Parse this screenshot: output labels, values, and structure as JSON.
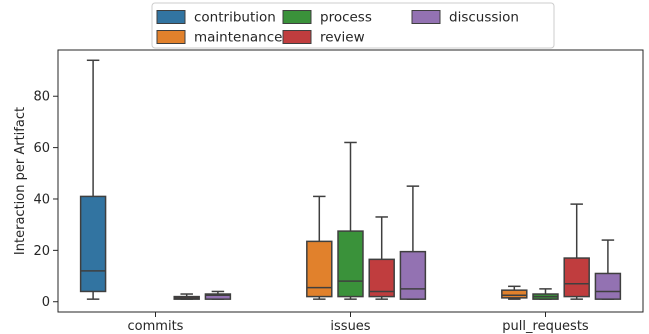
{
  "chart_data": {
    "type": "boxplot",
    "title": "",
    "xlabel": "",
    "ylabel": "Interaction per Artifact",
    "ylim": [
      -4,
      98
    ],
    "yticks": [
      0,
      20,
      40,
      60,
      80
    ],
    "grid": false,
    "legend_position": "top-center",
    "categories": [
      "commits",
      "issues",
      "pull_requests"
    ],
    "series": [
      {
        "name": "contribution",
        "color": "#3274a1",
        "boxes": [
          {
            "category": "commits",
            "min": 1,
            "q1": 4,
            "median": 12,
            "q3": 41,
            "max": 94
          },
          null,
          null
        ]
      },
      {
        "name": "maintenance",
        "color": "#e1812c",
        "boxes": [
          null,
          {
            "category": "issues",
            "min": 1,
            "q1": 2,
            "median": 5.5,
            "q3": 23.5,
            "max": 41
          },
          {
            "category": "pull_requests",
            "min": 1,
            "q1": 1.5,
            "median": 2.5,
            "q3": 4.5,
            "max": 6
          }
        ]
      },
      {
        "name": "process",
        "color": "#3a923a",
        "boxes": [
          null,
          {
            "category": "issues",
            "min": 1,
            "q1": 2,
            "median": 8,
            "q3": 27.5,
            "max": 62
          },
          {
            "category": "pull_requests",
            "min": 1,
            "q1": 1,
            "median": 2,
            "q3": 3,
            "max": 5
          }
        ]
      },
      {
        "name": "review",
        "color": "#c03d3e",
        "boxes": [
          {
            "category": "commits",
            "min": 1,
            "q1": 1,
            "median": 1.5,
            "q3": 2,
            "max": 3
          },
          {
            "category": "issues",
            "min": 1,
            "q1": 2,
            "median": 4,
            "q3": 16.5,
            "max": 33
          },
          {
            "category": "pull_requests",
            "min": 1,
            "q1": 2,
            "median": 7,
            "q3": 17,
            "max": 38
          }
        ]
      },
      {
        "name": "discussion",
        "color": "#9372b2",
        "boxes": [
          {
            "category": "commits",
            "min": 1,
            "q1": 1,
            "median": 2.5,
            "q3": 3,
            "max": 4
          },
          {
            "category": "issues",
            "min": 1,
            "q1": 1,
            "median": 5,
            "q3": 19.5,
            "max": 45
          },
          {
            "category": "pull_requests",
            "min": 1,
            "q1": 1,
            "median": 4,
            "q3": 11,
            "max": 24
          }
        ]
      }
    ],
    "legend": {
      "rows": [
        [
          "contribution",
          "process",
          "discussion"
        ],
        [
          "maintenance",
          "review"
        ]
      ]
    }
  }
}
